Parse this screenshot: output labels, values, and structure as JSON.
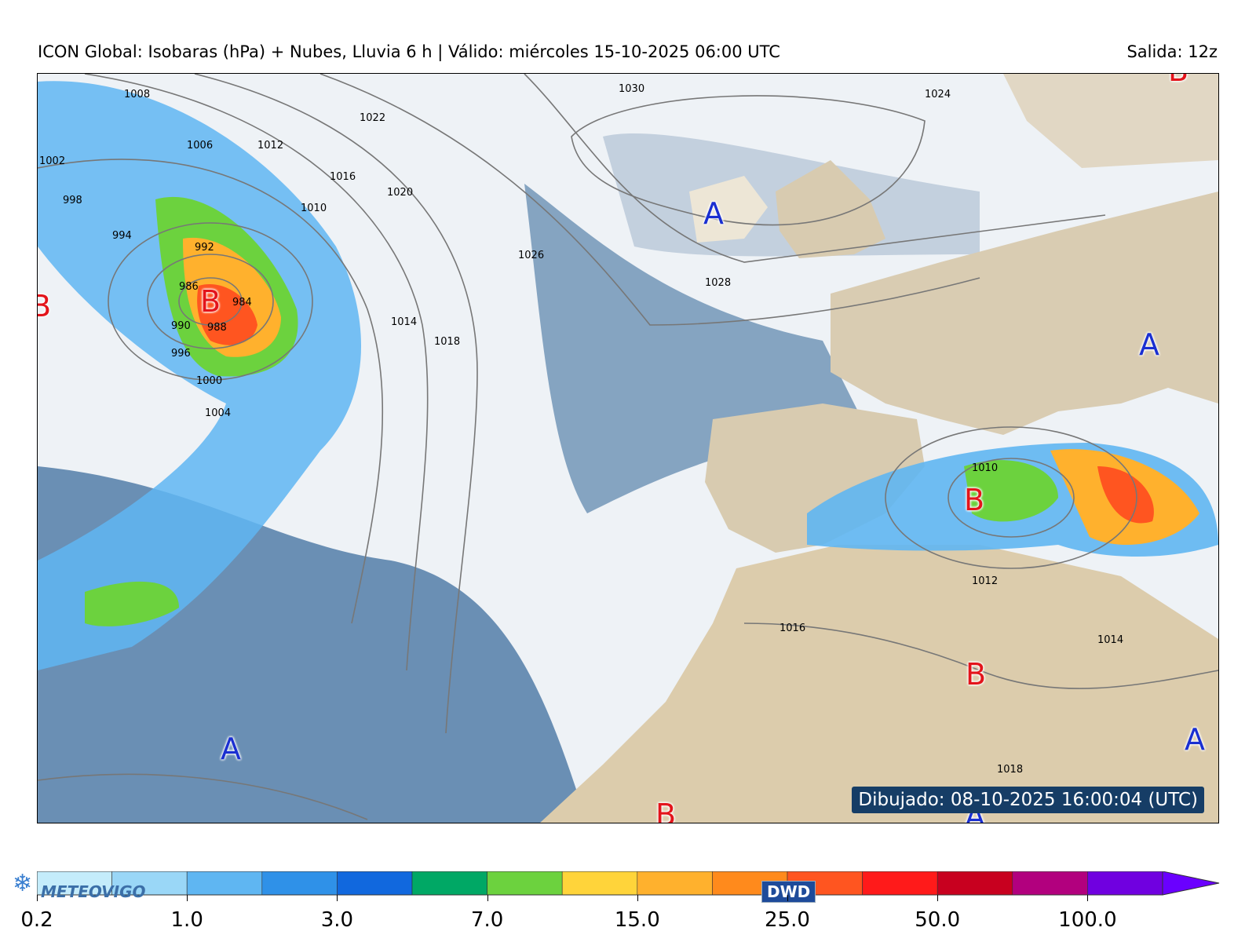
{
  "header": {
    "title": "ICON Global: Isobaras (hPa) + Nubes, Lluvia 6 h | Válido: miércoles 15-10-2025 06:00 UTC",
    "run": "Salida: 12z"
  },
  "map": {
    "stamp": "Dibujado: 08-10-2025 16:00:04 (UTC)",
    "low_symbol": "B",
    "high_symbol": "A",
    "isobar_labels": [
      "1008",
      "1006",
      "1012",
      "1022",
      "1016",
      "1020",
      "1010",
      "1002",
      "998",
      "994",
      "992",
      "990",
      "986",
      "984",
      "988",
      "996",
      "1000",
      "1004",
      "1014",
      "1018",
      "1024",
      "1026",
      "1030",
      "1028",
      "1010",
      "1012",
      "1016",
      "1014",
      "1018"
    ]
  },
  "colorbar": {
    "ticks": [
      "0.2",
      "1.0",
      "3.0",
      "7.0",
      "15.0",
      "25.0",
      "50.0",
      "100.0"
    ],
    "colors": [
      "#c4ecfb",
      "#9ad7f7",
      "#5fb6f2",
      "#2f91e8",
      "#1168de",
      "#00a865",
      "#6cd23e",
      "#ffd43a",
      "#ffb12d",
      "#ff8a1c",
      "#ff5520",
      "#ff1a1a",
      "#c8001f",
      "#b2007e",
      "#7000e0",
      "#6a00ff"
    ]
  },
  "logos": {
    "meteovigo": "METEOVIGO",
    "dwd": "DWD"
  }
}
